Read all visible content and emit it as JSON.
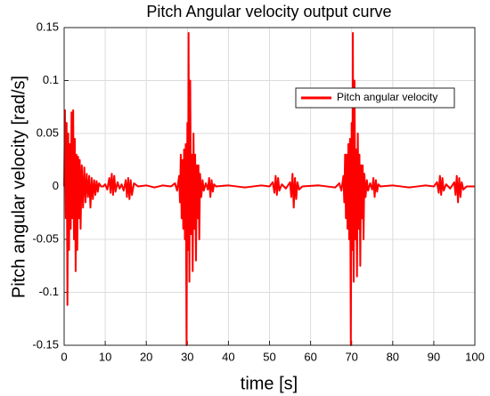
{
  "chart_data": {
    "type": "line",
    "title": "Pitch Angular velocity output curve",
    "xlabel": "time [s]",
    "ylabel": "Pitch angular velocity [rad/s]",
    "xlim": [
      0,
      100
    ],
    "xticks": [
      0,
      10,
      20,
      30,
      40,
      50,
      60,
      70,
      80,
      90,
      100
    ],
    "ylim": [
      -0.15,
      0.15
    ],
    "yticks": [
      -0.15,
      -0.1,
      -0.05,
      0,
      0.05,
      0.1,
      0.15
    ],
    "grid": true,
    "legend": "upper right",
    "series": [
      {
        "name": "Pitch angular velocity",
        "color": "#ff0000",
        "x": [
          0,
          0.2,
          0.4,
          0.6,
          0.8,
          1.0,
          1.2,
          1.4,
          1.6,
          1.8,
          2.0,
          2.2,
          2.4,
          2.6,
          2.8,
          3.0,
          3.2,
          3.4,
          3.6,
          3.8,
          4.0,
          4.3,
          4.6,
          4.9,
          5.2,
          5.5,
          5.8,
          6.1,
          6.4,
          6.7,
          7.0,
          7.3,
          7.6,
          7.9,
          8.2,
          8.5,
          9.0,
          9.5,
          10,
          10.5,
          11,
          11.3,
          11.6,
          11.9,
          12.2,
          12.5,
          13,
          13.5,
          14,
          14.5,
          15,
          15.3,
          15.6,
          15.9,
          16.2,
          16.5,
          17,
          18,
          20,
          22,
          24,
          26,
          27,
          27.5,
          28,
          28.2,
          28.4,
          28.6,
          28.8,
          29,
          29.2,
          29.4,
          29.6,
          29.8,
          30,
          30.2,
          30.3,
          30.5,
          30.7,
          30.9,
          31.1,
          31.3,
          31.5,
          31.7,
          31.9,
          32.1,
          32.3,
          32.5,
          32.7,
          32.9,
          33.1,
          33.4,
          33.7,
          34,
          34.5,
          35,
          35.3,
          35.6,
          35.9,
          36.2,
          36.5,
          37,
          40,
          44,
          48,
          50,
          50.8,
          51.2,
          51.5,
          51.8,
          52.1,
          52.4,
          53,
          54,
          55,
          55.3,
          55.6,
          55.9,
          56.2,
          56.5,
          56.8,
          57.2,
          58,
          62,
          66,
          67,
          67.5,
          68,
          68.2,
          68.4,
          68.6,
          68.8,
          69,
          69.2,
          69.4,
          69.6,
          69.8,
          70,
          70.2,
          70.3,
          70.5,
          70.7,
          70.9,
          71.1,
          71.3,
          71.5,
          71.7,
          71.9,
          72.1,
          72.3,
          72.5,
          72.7,
          72.9,
          73.1,
          73.4,
          73.7,
          74,
          74.5,
          75,
          75.3,
          75.6,
          75.9,
          76.2,
          76.5,
          77,
          80,
          84,
          88,
          90,
          90.8,
          91.2,
          91.5,
          91.8,
          92.1,
          92.4,
          93,
          94,
          95,
          95.3,
          95.6,
          95.9,
          96.2,
          96.5,
          96.8,
          97.2,
          98,
          100
        ],
        "values": [
          0,
          0.072,
          -0.03,
          0.06,
          -0.112,
          0.05,
          -0.06,
          0.04,
          -0.04,
          0.07,
          -0.03,
          0.072,
          -0.05,
          0.045,
          -0.08,
          0.03,
          -0.06,
          0.028,
          -0.03,
          0.025,
          -0.04,
          0.02,
          -0.02,
          0.018,
          -0.015,
          0.012,
          -0.01,
          0.01,
          -0.02,
          0.008,
          -0.012,
          0.006,
          -0.008,
          0.005,
          -0.005,
          0.003,
          0,
          0,
          0.002,
          -0.003,
          0.008,
          -0.006,
          0.012,
          -0.008,
          0.01,
          -0.005,
          0.004,
          -0.002,
          0.002,
          -0.004,
          0.006,
          -0.01,
          0.008,
          -0.012,
          0.006,
          -0.008,
          0.003,
          0,
          0.001,
          -0.001,
          0.001,
          0,
          0.003,
          -0.004,
          0.01,
          -0.015,
          0.03,
          -0.03,
          0.025,
          -0.04,
          0.035,
          -0.05,
          0.04,
          -0.15,
          0.06,
          -0.06,
          0.145,
          -0.09,
          0.1,
          -0.045,
          0.03,
          -0.08,
          0.05,
          -0.04,
          0.03,
          -0.07,
          0.02,
          -0.03,
          0.02,
          -0.05,
          0.012,
          -0.01,
          0.006,
          -0.004,
          0.003,
          -0.003,
          0.008,
          -0.01,
          0.006,
          -0.005,
          0.002,
          0,
          0.001,
          -0.001,
          0.001,
          0,
          0.004,
          -0.006,
          0.01,
          -0.008,
          0.008,
          -0.004,
          0.002,
          -0.002,
          0.004,
          -0.01,
          0.012,
          -0.02,
          0.008,
          -0.012,
          0.004,
          -0.003,
          0,
          0.001,
          -0.001,
          0.003,
          -0.004,
          0.01,
          -0.015,
          0.03,
          -0.03,
          0.03,
          -0.04,
          0.04,
          -0.05,
          0.045,
          -0.15,
          0.06,
          -0.06,
          0.145,
          -0.09,
          0.1,
          -0.05,
          0.035,
          -0.085,
          0.05,
          -0.04,
          0.03,
          -0.075,
          0.02,
          -0.03,
          0.02,
          -0.05,
          0.012,
          -0.01,
          0.006,
          -0.004,
          0.003,
          -0.003,
          0.008,
          -0.01,
          0.006,
          -0.005,
          0.002,
          0,
          0.001,
          -0.001,
          0.001,
          0,
          0.004,
          -0.006,
          0.01,
          -0.008,
          0.008,
          -0.004,
          0.002,
          -0.002,
          0.004,
          -0.008,
          0.01,
          -0.015,
          0.008,
          -0.01,
          0.004,
          -0.003,
          0,
          0
        ]
      }
    ]
  }
}
